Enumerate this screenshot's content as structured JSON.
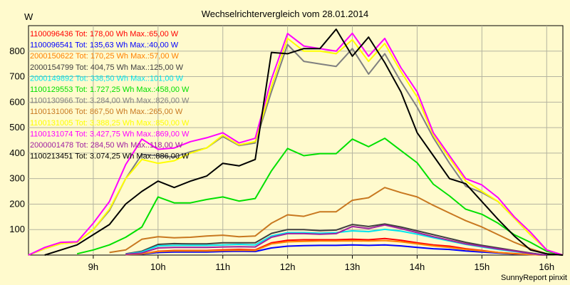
{
  "chart_data": {
    "type": "line",
    "title": "Wechselrichtervergleich vom 28.01.2014",
    "ylabel": "W",
    "xlabel": "",
    "ylim": [
      0,
      900
    ],
    "yticks": [
      100,
      200,
      300,
      400,
      500,
      600,
      700,
      800
    ],
    "xlim": [
      8.0,
      16.25
    ],
    "xticks": [
      9,
      10,
      11,
      12,
      13,
      14,
      15,
      16
    ],
    "xtick_labels": [
      "9h",
      "10h",
      "11h",
      "12h",
      "13h",
      "14h",
      "15h",
      "16h"
    ],
    "grid": true,
    "legend_position": "top-left",
    "footer": "SunnyReport pinxit",
    "series": [
      {
        "name": "1100096436 Tot: 178,00 Wh Max.:65,00 W",
        "color": "#ff0000",
        "x": [
          9.5,
          9.75,
          10,
          10.25,
          10.5,
          10.75,
          11,
          11.25,
          11.5,
          11.75,
          12,
          12.25,
          12.5,
          12.75,
          13,
          13.25,
          13.5,
          13.75,
          14,
          14.25,
          14.5,
          14.75,
          15,
          15.25,
          15.5,
          15.75,
          16
        ],
        "y": [
          2,
          4,
          15,
          18,
          18,
          18,
          20,
          22,
          20,
          48,
          58,
          60,
          60,
          60,
          62,
          60,
          65,
          58,
          48,
          40,
          35,
          25,
          18,
          10,
          6,
          2,
          0
        ]
      },
      {
        "name": "1100096541 Tot: 135,63 Wh Max.:40,00 W",
        "color": "#0000ff",
        "x": [
          9.5,
          9.75,
          10,
          10.25,
          10.5,
          10.75,
          11,
          11.25,
          11.5,
          11.75,
          12,
          12.25,
          12.5,
          12.75,
          13,
          13.25,
          13.5,
          13.75,
          14,
          14.25,
          14.5,
          14.75,
          15,
          15.25,
          15.5,
          15.75,
          16
        ],
        "y": [
          2,
          4,
          10,
          12,
          12,
          12,
          14,
          15,
          14,
          28,
          35,
          37,
          38,
          38,
          40,
          38,
          40,
          36,
          30,
          25,
          22,
          16,
          12,
          8,
          4,
          2,
          0
        ]
      },
      {
        "name": "2000150622 Tot: 170,25 Wh Max.:57,00 W",
        "color": "#ff8000",
        "x": [
          9.5,
          9.75,
          10,
          10.25,
          10.5,
          10.75,
          11,
          11.25,
          11.5,
          11.75,
          12,
          12.25,
          12.5,
          12.75,
          13,
          13.25,
          13.5,
          13.75,
          14,
          14.25,
          14.5,
          14.75,
          15,
          15.25,
          15.5,
          15.75,
          16
        ],
        "y": [
          2,
          5,
          14,
          16,
          16,
          16,
          18,
          19,
          18,
          44,
          52,
          54,
          55,
          55,
          56,
          55,
          57,
          52,
          44,
          36,
          30,
          22,
          16,
          10,
          5,
          2,
          0
        ]
      },
      {
        "name": "2000154799 Tot: 404,75 Wh Max.:125,00 W",
        "color": "#404040",
        "x": [
          9.5,
          9.75,
          10,
          10.25,
          10.5,
          10.75,
          11,
          11.25,
          11.5,
          11.75,
          12,
          12.25,
          12.5,
          12.75,
          13,
          13.25,
          13.5,
          13.75,
          14,
          14.25,
          14.5,
          14.75,
          15,
          15.25,
          15.5,
          15.75,
          16
        ],
        "y": [
          5,
          15,
          42,
          45,
          44,
          44,
          48,
          48,
          48,
          85,
          100,
          100,
          96,
          98,
          120,
          112,
          122,
          110,
          95,
          80,
          65,
          50,
          38,
          28,
          18,
          8,
          0
        ]
      },
      {
        "name": "2000149892 Tot: 338,50 Wh Max.:101,00 W",
        "color": "#00e5ee",
        "x": [
          9.5,
          9.75,
          10,
          10.25,
          10.5,
          10.75,
          11,
          11.25,
          11.5,
          11.75,
          12,
          12.25,
          12.5,
          12.75,
          13,
          13.25,
          13.5,
          13.75,
          14,
          14.25,
          14.5,
          14.75,
          15,
          15.25,
          15.5,
          15.75,
          16
        ],
        "y": [
          4,
          12,
          36,
          38,
          38,
          38,
          40,
          42,
          40,
          75,
          88,
          88,
          86,
          88,
          95,
          92,
          101,
          94,
          82,
          68,
          55,
          42,
          32,
          22,
          14,
          6,
          0
        ]
      },
      {
        "name": "1100129553 Tot: 1.727,25 Wh Max.:458,00 W",
        "color": "#00e000",
        "x": [
          8.75,
          9,
          9.25,
          9.5,
          9.75,
          10,
          10.25,
          10.5,
          10.75,
          11,
          11.25,
          11.5,
          11.75,
          12,
          12.25,
          12.5,
          12.75,
          13,
          13.25,
          13.5,
          13.75,
          14,
          14.25,
          14.5,
          14.75,
          15,
          15.25,
          15.5,
          15.75,
          16,
          16.25
        ],
        "y": [
          5,
          20,
          40,
          70,
          110,
          228,
          205,
          205,
          218,
          228,
          212,
          222,
          330,
          418,
          390,
          398,
          398,
          455,
          425,
          458,
          410,
          362,
          278,
          232,
          180,
          160,
          125,
          80,
          50,
          15,
          0
        ]
      },
      {
        "name": "1100130966 Tot: 3.284,00 Wh Max.:826,00 W",
        "color": "#808080",
        "x": [
          8,
          8.25,
          8.5,
          8.75,
          9,
          9.25,
          9.5,
          9.75,
          10,
          10.25,
          10.5,
          10.75,
          11,
          11.25,
          11.5,
          11.75,
          12,
          12.25,
          12.5,
          12.75,
          13,
          13.25,
          13.5,
          13.75,
          14,
          14.25,
          14.5,
          14.75,
          15,
          15.25,
          15.5,
          15.75,
          16,
          16.25
        ],
        "y": [
          0,
          25,
          45,
          50,
          100,
          175,
          300,
          395,
          390,
          385,
          405,
          420,
          465,
          430,
          440,
          640,
          826,
          760,
          750,
          740,
          810,
          710,
          790,
          680,
          580,
          460,
          360,
          270,
          245,
          210,
          145,
          80,
          20,
          0
        ]
      },
      {
        "name": "1100131006 Tot: 867,50 Wh Max.:265,00 W",
        "color": "#c87820",
        "x": [
          9.25,
          9.5,
          9.75,
          10,
          10.25,
          10.5,
          10.75,
          11,
          11.25,
          11.5,
          11.75,
          12,
          12.25,
          12.5,
          12.75,
          13,
          13.25,
          13.5,
          13.75,
          14,
          14.25,
          14.5,
          14.75,
          15,
          15.25,
          15.5,
          15.75,
          16,
          16.25
        ],
        "y": [
          10,
          20,
          62,
          72,
          68,
          70,
          75,
          78,
          72,
          75,
          125,
          158,
          152,
          170,
          170,
          215,
          225,
          265,
          245,
          228,
          195,
          165,
          135,
          110,
          80,
          50,
          25,
          5,
          0
        ]
      },
      {
        "name": "1100131005 Tot: 3.388,25 Wh Max.:850,00 W",
        "color": "#ffff00",
        "x": [
          8,
          8.25,
          8.5,
          8.75,
          9,
          9.25,
          9.5,
          9.75,
          10,
          10.25,
          10.5,
          10.75,
          11,
          11.25,
          11.5,
          11.75,
          12,
          12.25,
          12.5,
          12.75,
          13,
          13.25,
          13.5,
          13.75,
          14,
          14.25,
          14.5,
          14.75,
          15,
          15.25,
          15.5,
          15.75,
          16,
          16.25
        ],
        "y": [
          0,
          25,
          45,
          50,
          100,
          180,
          300,
          375,
          360,
          370,
          400,
          420,
          470,
          432,
          445,
          660,
          850,
          800,
          800,
          790,
          845,
          760,
          830,
          720,
          620,
          470,
          380,
          290,
          250,
          210,
          145,
          80,
          20,
          0
        ]
      },
      {
        "name": "1100131074 Tot: 3.427,75 Wh Max.:869,00 W",
        "color": "#ff00ff",
        "x": [
          8,
          8.25,
          8.5,
          8.75,
          9,
          9.25,
          9.5,
          9.75,
          10,
          10.25,
          10.5,
          10.75,
          11,
          11.25,
          11.5,
          11.75,
          12,
          12.25,
          12.5,
          12.75,
          13,
          13.25,
          13.5,
          13.75,
          14,
          14.25,
          14.5,
          14.75,
          15,
          15.25,
          15.5,
          15.75,
          16,
          16.25
        ],
        "y": [
          0,
          30,
          50,
          52,
          125,
          210,
          355,
          455,
          415,
          420,
          445,
          460,
          480,
          440,
          458,
          690,
          869,
          820,
          810,
          800,
          870,
          780,
          850,
          735,
          640,
          480,
          390,
          300,
          275,
          225,
          150,
          90,
          20,
          0
        ]
      },
      {
        "name": "2000001478 Tot: 284,50 Wh Max.:118,00 W",
        "color": "#a020a0",
        "x": [
          9.5,
          9.75,
          10,
          10.25,
          10.5,
          10.75,
          11,
          11.25,
          11.5,
          11.75,
          12,
          12.25,
          12.5,
          12.75,
          13,
          13.25,
          13.5,
          13.75,
          14,
          14.25,
          14.5,
          14.75,
          15,
          15.25,
          15.5,
          15.75,
          16
        ],
        "y": [
          3,
          8,
          28,
          30,
          30,
          30,
          32,
          33,
          32,
          70,
          84,
          84,
          82,
          84,
          112,
          104,
          118,
          104,
          88,
          72,
          58,
          44,
          34,
          24,
          16,
          6,
          0
        ]
      },
      {
        "name": "1100213451 Tot: 3.074,25 Wh Max.:886,00 W",
        "color": "#000000",
        "x": [
          8.25,
          8.5,
          8.75,
          9,
          9.25,
          9.5,
          9.75,
          10,
          10.25,
          10.5,
          10.75,
          11,
          11.25,
          11.5,
          11.75,
          12,
          12.25,
          12.5,
          12.75,
          13,
          13.25,
          13.5,
          13.75,
          14,
          14.25,
          14.5,
          14.75,
          15,
          15.25,
          15.5,
          15.75,
          16,
          16.25
        ],
        "y": [
          0,
          20,
          40,
          80,
          120,
          200,
          250,
          290,
          265,
          290,
          310,
          360,
          350,
          375,
          795,
          790,
          810,
          810,
          886,
          780,
          855,
          755,
          640,
          480,
          390,
          300,
          280,
          210,
          140,
          75,
          20,
          5,
          0
        ]
      }
    ]
  }
}
